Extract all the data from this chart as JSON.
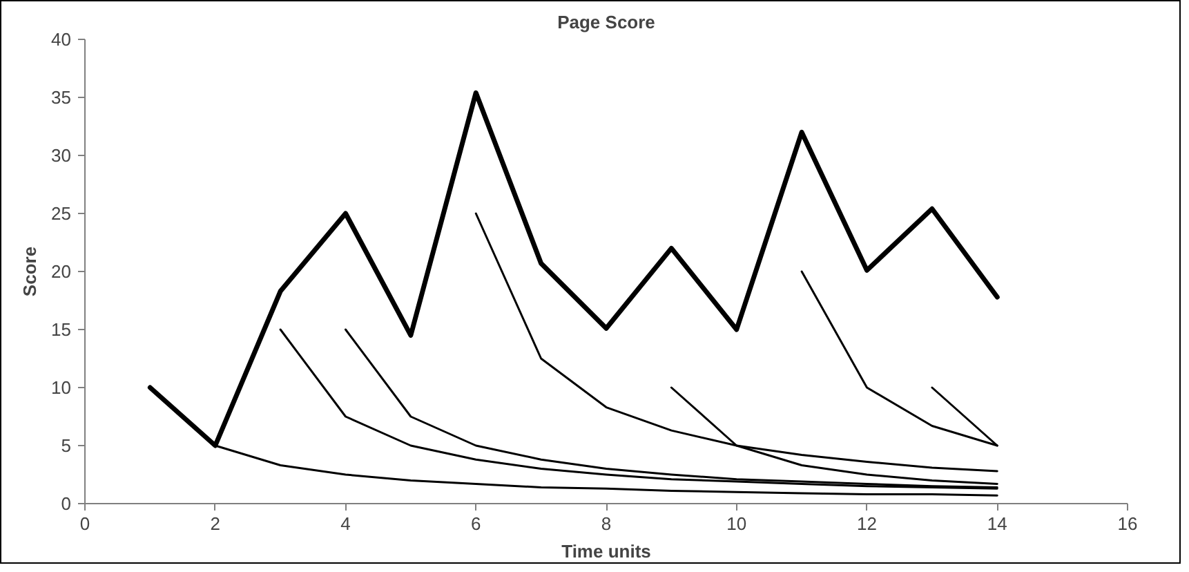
{
  "chart_data": {
    "type": "line",
    "title": "Page Score",
    "xlabel": "Time units",
    "ylabel": "Score",
    "xlim": [
      0,
      16
    ],
    "xticks": [
      0,
      2,
      4,
      6,
      8,
      10,
      12,
      14,
      16
    ],
    "ylim": [
      0,
      40
    ],
    "yticks": [
      0,
      5,
      10,
      15,
      20,
      25,
      30,
      35,
      40
    ],
    "grid": false,
    "marker": "none",
    "line_style": "solid",
    "series": [
      {
        "color": "#000000",
        "x": [
          1,
          2,
          3,
          4,
          5,
          6,
          7,
          8,
          9,
          10,
          11,
          12,
          13,
          14
        ],
        "values": [
          10,
          5,
          18.3,
          25,
          14.5,
          35.4,
          20.7,
          15.1,
          22,
          15,
          32,
          20.1,
          25.4,
          17.8
        ]
      },
      {
        "color": "#000000",
        "x": [
          1,
          2,
          3,
          4,
          5,
          6,
          7,
          8,
          9,
          10,
          11,
          12,
          13,
          14
        ],
        "values": [
          10,
          5,
          3.3,
          2.5,
          2,
          1.7,
          1.4,
          1.3,
          1.1,
          1,
          0.9,
          0.8,
          0.8,
          0.7
        ]
      },
      {
        "color": "#000000",
        "x": [
          3,
          4,
          5,
          6,
          7,
          8,
          9,
          10,
          11,
          12,
          13,
          14
        ],
        "values": [
          15,
          7.5,
          5,
          3.8,
          3,
          2.5,
          2.1,
          1.9,
          1.7,
          1.5,
          1.4,
          1.3
        ]
      },
      {
        "color": "#000000",
        "x": [
          4,
          5,
          6,
          7,
          8,
          9,
          10,
          11,
          12,
          13,
          14
        ],
        "values": [
          15,
          7.5,
          5,
          3.8,
          3,
          2.5,
          2.1,
          1.9,
          1.7,
          1.5,
          1.4
        ]
      },
      {
        "color": "#000000",
        "x": [
          6,
          7,
          8,
          9,
          10,
          11,
          12,
          13,
          14
        ],
        "values": [
          25,
          12.5,
          8.3,
          6.3,
          5,
          4.2,
          3.6,
          3.1,
          2.8
        ]
      },
      {
        "color": "#000000",
        "x": [
          9,
          10,
          11,
          12,
          13,
          14
        ],
        "values": [
          10,
          5,
          3.3,
          2.5,
          2,
          1.7
        ]
      },
      {
        "color": "#000000",
        "x": [
          11,
          12,
          13,
          14
        ],
        "values": [
          20,
          10,
          6.7,
          5
        ]
      },
      {
        "color": "#000000",
        "x": [
          13,
          14
        ],
        "values": [
          10,
          5
        ]
      }
    ]
  }
}
